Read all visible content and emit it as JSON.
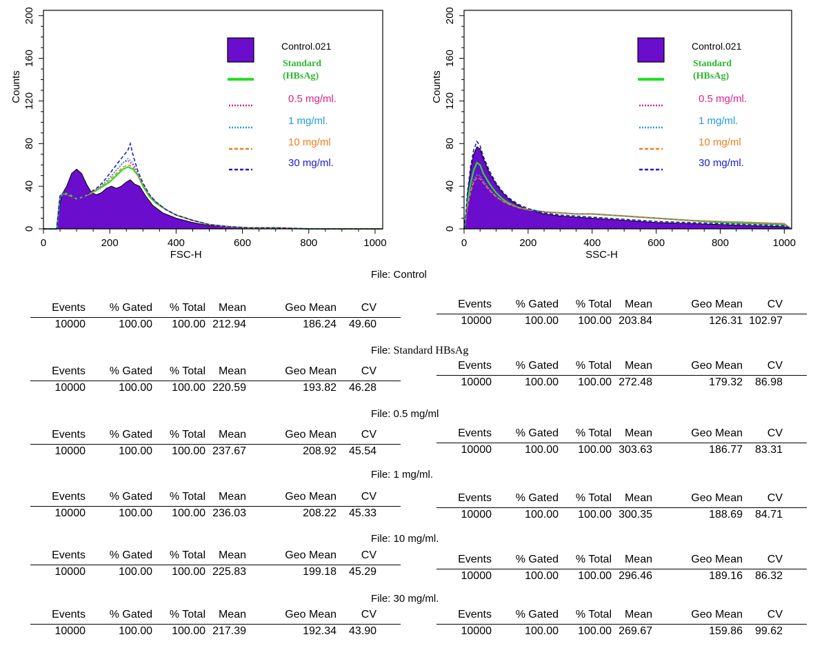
{
  "chart_data": [
    {
      "type": "histogram",
      "xlabel": "FSC-H",
      "ylabel": "Counts",
      "xlim": [
        0,
        1023
      ],
      "ylim": [
        0,
        205
      ],
      "xticks": [
        0,
        200,
        400,
        600,
        800,
        1000
      ],
      "yticks": [
        0,
        40,
        80,
        120,
        160,
        200
      ],
      "legend_position": "top-right",
      "series": [
        {
          "name": "Control.021",
          "style": "filled",
          "color": "#6a0dcc",
          "x": [
            0,
            40,
            48,
            55,
            70,
            85,
            100,
            115,
            130,
            145,
            160,
            175,
            190,
            205,
            220,
            235,
            250,
            262,
            275,
            290,
            310,
            330,
            360,
            400,
            450,
            500,
            560,
            620,
            700,
            800,
            1023
          ],
          "y": [
            0,
            0,
            20,
            32,
            40,
            52,
            56,
            52,
            42,
            34,
            32,
            34,
            38,
            40,
            38,
            40,
            44,
            46,
            42,
            40,
            30,
            22,
            15,
            10,
            6,
            3,
            2,
            1,
            1,
            0,
            0
          ]
        },
        {
          "name": "Standard (HBsAg)",
          "style": "line",
          "color": "#22e022",
          "x": [
            0,
            40,
            50,
            60,
            80,
            100,
            120,
            140,
            160,
            180,
            200,
            220,
            240,
            255,
            270,
            285,
            300,
            320,
            340,
            370,
            400,
            450,
            500,
            560,
            620,
            700,
            800,
            900,
            1023
          ],
          "y": [
            0,
            0,
            30,
            34,
            32,
            28,
            30,
            33,
            36,
            40,
            44,
            50,
            56,
            58,
            56,
            50,
            40,
            30,
            24,
            18,
            13,
            8,
            4,
            2,
            1,
            1,
            0,
            0,
            0
          ]
        },
        {
          "name": "0.5 mg/ml.",
          "style": "dotted",
          "color": "#e0208a",
          "x": [
            0,
            40,
            50,
            60,
            80,
            100,
            120,
            140,
            160,
            180,
            200,
            220,
            240,
            255,
            270,
            285,
            300,
            320,
            340,
            370,
            400,
            450,
            500,
            560,
            620,
            700,
            800,
            900,
            1023
          ],
          "y": [
            0,
            0,
            30,
            33,
            31,
            28,
            30,
            33,
            37,
            42,
            48,
            55,
            62,
            64,
            60,
            52,
            42,
            32,
            25,
            18,
            13,
            8,
            4,
            2,
            1,
            1,
            0,
            0,
            0
          ]
        },
        {
          "name": "1 mg/ml.",
          "style": "dotted",
          "color": "#1a9be0",
          "x": [
            0,
            40,
            50,
            60,
            80,
            100,
            120,
            140,
            160,
            180,
            200,
            220,
            240,
            255,
            270,
            285,
            300,
            320,
            340,
            370,
            400,
            450,
            500,
            560,
            620,
            700,
            800,
            900,
            1023
          ],
          "y": [
            0,
            0,
            29,
            33,
            31,
            28,
            30,
            33,
            37,
            42,
            48,
            55,
            62,
            66,
            62,
            52,
            42,
            32,
            25,
            18,
            13,
            8,
            4,
            2,
            1,
            1,
            0,
            0,
            0
          ]
        },
        {
          "name": "10 mg/ml",
          "style": "dashed",
          "color": "#f07d1a",
          "x": [
            0,
            40,
            50,
            60,
            80,
            100,
            120,
            140,
            160,
            180,
            200,
            220,
            240,
            255,
            270,
            285,
            300,
            320,
            340,
            370,
            400,
            450,
            500,
            560,
            620,
            700,
            800,
            900,
            1023
          ],
          "y": [
            0,
            0,
            30,
            33,
            31,
            28,
            30,
            33,
            37,
            41,
            46,
            52,
            58,
            60,
            58,
            50,
            41,
            31,
            25,
            18,
            13,
            8,
            4,
            2,
            1,
            1,
            0,
            0,
            0
          ]
        },
        {
          "name": "30 mg/ml.",
          "style": "dashed",
          "color": "#1a1ad0",
          "x": [
            0,
            40,
            50,
            60,
            80,
            100,
            120,
            140,
            160,
            180,
            200,
            220,
            240,
            255,
            262,
            268,
            275,
            285,
            300,
            320,
            340,
            370,
            400,
            450,
            500,
            560,
            620,
            700,
            800,
            900,
            1023
          ],
          "y": [
            0,
            0,
            31,
            34,
            32,
            28,
            30,
            34,
            38,
            44,
            52,
            60,
            68,
            74,
            80,
            72,
            64,
            54,
            43,
            32,
            25,
            18,
            13,
            8,
            4,
            2,
            1,
            1,
            0,
            0,
            0
          ]
        }
      ]
    },
    {
      "type": "histogram",
      "xlabel": "SSC-H",
      "ylabel": "Counts",
      "xlim": [
        0,
        1023
      ],
      "ylim": [
        0,
        205
      ],
      "xticks": [
        0,
        200,
        400,
        600,
        800,
        1000
      ],
      "yticks": [
        0,
        40,
        80,
        120,
        160,
        200
      ],
      "legend_position": "top-right",
      "series": [
        {
          "name": "Control.021",
          "style": "filled",
          "color": "#6a0dcc",
          "x": [
            0,
            5,
            10,
            20,
            30,
            40,
            50,
            60,
            80,
            100,
            120,
            140,
            170,
            200,
            250,
            300,
            350,
            400,
            450,
            500,
            600,
            700,
            800,
            900,
            1000,
            1023
          ],
          "y": [
            0,
            12,
            30,
            55,
            70,
            77,
            75,
            66,
            52,
            42,
            34,
            28,
            22,
            18,
            14,
            12,
            11,
            10,
            9,
            8,
            6,
            5,
            4,
            3,
            2,
            0
          ]
        },
        {
          "name": "Standard (HBsAg)",
          "style": "line",
          "color": "#22e022",
          "x": [
            0,
            5,
            10,
            20,
            30,
            40,
            50,
            60,
            80,
            100,
            120,
            140,
            170,
            200,
            250,
            300,
            350,
            400,
            450,
            500,
            600,
            700,
            800,
            900,
            1000,
            1023
          ],
          "y": [
            0,
            10,
            25,
            42,
            55,
            62,
            60,
            52,
            42,
            34,
            28,
            24,
            20,
            18,
            16,
            15,
            14,
            14,
            13,
            12,
            10,
            8,
            6,
            5,
            4,
            0
          ]
        },
        {
          "name": "0.5 mg/ml.",
          "style": "dotted",
          "color": "#e0208a",
          "x": [
            0,
            5,
            10,
            20,
            30,
            40,
            50,
            60,
            80,
            100,
            120,
            140,
            170,
            200,
            250,
            300,
            350,
            400,
            450,
            500,
            600,
            700,
            800,
            900,
            1000,
            1023
          ],
          "y": [
            0,
            8,
            20,
            35,
            45,
            50,
            49,
            44,
            36,
            30,
            26,
            23,
            20,
            18,
            16,
            15,
            14,
            14,
            13,
            12,
            10,
            8,
            7,
            6,
            5,
            0
          ]
        },
        {
          "name": "1 mg/ml.",
          "style": "dotted",
          "color": "#1a9be0",
          "x": [
            0,
            5,
            10,
            20,
            30,
            40,
            50,
            60,
            80,
            100,
            120,
            140,
            170,
            200,
            250,
            300,
            350,
            400,
            450,
            500,
            600,
            700,
            800,
            900,
            1000,
            1023
          ],
          "y": [
            0,
            8,
            21,
            36,
            46,
            51,
            50,
            45,
            37,
            31,
            26,
            23,
            20,
            18,
            16,
            15,
            14,
            14,
            13,
            12,
            10,
            8,
            7,
            6,
            5,
            0
          ]
        },
        {
          "name": "10 mg/ml",
          "style": "dashed",
          "color": "#f07d1a",
          "x": [
            0,
            5,
            10,
            20,
            30,
            40,
            50,
            60,
            80,
            100,
            120,
            140,
            170,
            200,
            250,
            300,
            350,
            400,
            450,
            500,
            600,
            700,
            800,
            900,
            1000,
            1023
          ],
          "y": [
            0,
            8,
            20,
            34,
            44,
            48,
            47,
            43,
            36,
            30,
            26,
            23,
            20,
            18,
            16,
            15,
            14,
            14,
            13,
            12,
            10,
            8,
            7,
            6,
            5,
            0
          ]
        },
        {
          "name": "30 mg/ml.",
          "style": "dashed",
          "color": "#1a1ad0",
          "x": [
            0,
            5,
            10,
            20,
            30,
            40,
            50,
            60,
            80,
            100,
            120,
            140,
            170,
            200,
            250,
            300,
            350,
            400,
            450,
            500,
            600,
            700,
            800,
            900,
            1000,
            1023
          ],
          "y": [
            0,
            12,
            32,
            58,
            74,
            82,
            78,
            68,
            54,
            43,
            35,
            29,
            23,
            19,
            15,
            13,
            12,
            11,
            10,
            9,
            7,
            6,
            5,
            4,
            3,
            0
          ]
        }
      ]
    }
  ],
  "stats": {
    "headers": [
      "Events",
      "% Gated",
      "% Total",
      "Mean",
      "Geo Mean",
      "CV"
    ],
    "groups": [
      {
        "file_prefix": "File:",
        "file_name": "Control",
        "fsc": [
          "10000",
          "100.00",
          "100.00",
          "212.94",
          "186.24",
          "49.60"
        ],
        "ssc": [
          "10000",
          "100.00",
          "100.00",
          "203.84",
          "126.31",
          "102.97"
        ]
      },
      {
        "file_prefix": "File:",
        "file_name": "Standard HBsAg",
        "fsc": [
          "10000",
          "100.00",
          "100.00",
          "220.59",
          "193.82",
          "46.28"
        ],
        "ssc": [
          "10000",
          "100.00",
          "100.00",
          "272.48",
          "179.32",
          "86.98"
        ]
      },
      {
        "file_prefix": "File:",
        "file_name": "0.5 mg/ml",
        "fsc": [
          "10000",
          "100.00",
          "100.00",
          "237.67",
          "208.92",
          "45.54"
        ],
        "ssc": [
          "10000",
          "100.00",
          "100.00",
          "303.63",
          "186.77",
          "83.31"
        ]
      },
      {
        "file_prefix": "File:",
        "file_name": "1 mg/ml.",
        "fsc": [
          "10000",
          "100.00",
          "100.00",
          "236.03",
          "208.22",
          "45.33"
        ],
        "ssc": [
          "10000",
          "100.00",
          "100.00",
          "300.35",
          "188.69",
          "84.71"
        ]
      },
      {
        "file_prefix": "File:",
        "file_name": "10 mg/ml.",
        "fsc": [
          "10000",
          "100.00",
          "100.00",
          "225.83",
          "199.18",
          "45.29"
        ],
        "ssc": [
          "10000",
          "100.00",
          "100.00",
          "296.46",
          "189.16",
          "86.32"
        ]
      },
      {
        "file_prefix": "File:",
        "file_name": "30 mg/ml.",
        "fsc": [
          "10000",
          "100.00",
          "100.00",
          "217.39",
          "192.34",
          "43.90"
        ],
        "ssc": [
          "10000",
          "100.00",
          "100.00",
          "269.67",
          "159.86",
          "99.62"
        ]
      }
    ]
  }
}
